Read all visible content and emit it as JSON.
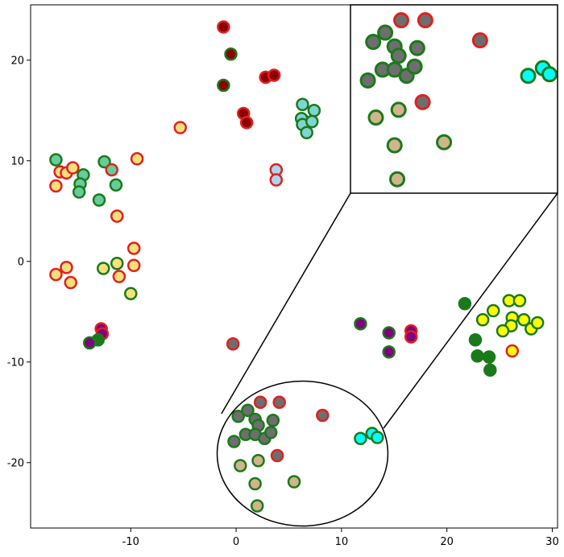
{
  "chart_data": {
    "type": "scatter",
    "title": "",
    "xlabel": "",
    "ylabel": "",
    "xlim": [
      -19.5,
      30.5
    ],
    "ylim": [
      -26.5,
      25.5
    ],
    "xticks": [
      -10,
      0,
      10,
      20,
      30
    ],
    "yticks": [
      -20,
      -10,
      0,
      10,
      20
    ],
    "xtick_labels": [
      "-10",
      "0",
      "10",
      "20",
      "30"
    ],
    "ytick_labels": [
      "-20",
      "-10",
      "0",
      "10",
      "20"
    ],
    "grid": false,
    "legend": "none",
    "zoom_ellipse": {
      "cx": 6.3,
      "cy": -19.1,
      "rx": 8.1,
      "ry": 7.2
    },
    "inset": {
      "source_xlim": [
        -1.5,
        14.0
      ],
      "source_ylim": [
        -25.2,
        -13.0
      ],
      "region_label": "top-right zoom inset"
    },
    "points": [
      {
        "x": -1.2,
        "y": 23.3,
        "fill": "#8b0000",
        "edge": "#e02020"
      },
      {
        "x": -0.5,
        "y": 20.6,
        "fill": "#8b0000",
        "edge": "#1a7a1a"
      },
      {
        "x": -1.2,
        "y": 17.5,
        "fill": "#8b0000",
        "edge": "#1a7a1a"
      },
      {
        "x": 0.7,
        "y": 14.7,
        "fill": "#8b0000",
        "edge": "#e02020"
      },
      {
        "x": 1.0,
        "y": 13.8,
        "fill": "#8b0000",
        "edge": "#e02020"
      },
      {
        "x": 2.8,
        "y": 18.3,
        "fill": "#8b0000",
        "edge": "#e02020"
      },
      {
        "x": 3.6,
        "y": 18.5,
        "fill": "#8b0000",
        "edge": "#e02020"
      },
      {
        "x": -5.3,
        "y": 13.3,
        "fill": "#f7e07a",
        "edge": "#e02020"
      },
      {
        "x": 3.8,
        "y": 9.1,
        "fill": "#a9d6ef",
        "edge": "#e02020"
      },
      {
        "x": 3.8,
        "y": 8.1,
        "fill": "#a9d6ef",
        "edge": "#e02020"
      },
      {
        "x": 6.3,
        "y": 14.1,
        "fill": "#7fd4d4",
        "edge": "#1a7a1a"
      },
      {
        "x": 6.2,
        "y": 14.2,
        "fill": "#7fd4d4",
        "edge": "#1a7a1a"
      },
      {
        "x": 6.3,
        "y": 15.6,
        "fill": "#7fd4d4",
        "edge": "#1a7a1a"
      },
      {
        "x": 7.4,
        "y": 15.0,
        "fill": "#7fd4d4",
        "edge": "#1a7a1a"
      },
      {
        "x": 6.3,
        "y": 13.6,
        "fill": "#7fd4d4",
        "edge": "#1a7a1a"
      },
      {
        "x": 7.2,
        "y": 13.9,
        "fill": "#7fd4d4",
        "edge": "#1a7a1a"
      },
      {
        "x": 6.7,
        "y": 12.8,
        "fill": "#7fd4d4",
        "edge": "#1a7a1a"
      },
      {
        "x": -17.1,
        "y": 10.1,
        "fill": "#66cc99",
        "edge": "#1a7a1a"
      },
      {
        "x": -16.7,
        "y": 8.9,
        "fill": "#f7e07a",
        "edge": "#e02020"
      },
      {
        "x": -16.1,
        "y": 8.8,
        "fill": "#f7e07a",
        "edge": "#e02020"
      },
      {
        "x": -15.5,
        "y": 9.3,
        "fill": "#f7e07a",
        "edge": "#e02020"
      },
      {
        "x": -17.1,
        "y": 7.5,
        "fill": "#f7e07a",
        "edge": "#e02020"
      },
      {
        "x": -14.5,
        "y": 8.6,
        "fill": "#66cc99",
        "edge": "#1a7a1a"
      },
      {
        "x": -14.8,
        "y": 7.7,
        "fill": "#66cc99",
        "edge": "#1a7a1a"
      },
      {
        "x": -14.9,
        "y": 6.9,
        "fill": "#66cc99",
        "edge": "#1a7a1a"
      },
      {
        "x": -12.5,
        "y": 9.9,
        "fill": "#66cc99",
        "edge": "#1a7a1a"
      },
      {
        "x": -11.8,
        "y": 9.1,
        "fill": "#66cc99",
        "edge": "#e02020"
      },
      {
        "x": -11.4,
        "y": 7.6,
        "fill": "#66cc99",
        "edge": "#1a7a1a"
      },
      {
        "x": -13.0,
        "y": 6.1,
        "fill": "#66cc99",
        "edge": "#1a7a1a"
      },
      {
        "x": -9.4,
        "y": 10.2,
        "fill": "#f7e07a",
        "edge": "#e02020"
      },
      {
        "x": -11.3,
        "y": 4.5,
        "fill": "#f7e07a",
        "edge": "#e02020"
      },
      {
        "x": -17.1,
        "y": -1.3,
        "fill": "#f7e07a",
        "edge": "#e02020"
      },
      {
        "x": -16.1,
        "y": -0.6,
        "fill": "#f7e07a",
        "edge": "#e02020"
      },
      {
        "x": -15.7,
        "y": -2.1,
        "fill": "#f7e07a",
        "edge": "#e02020"
      },
      {
        "x": -12.6,
        "y": -0.7,
        "fill": "#f7e07a",
        "edge": "#1a7a1a"
      },
      {
        "x": -11.3,
        "y": -0.2,
        "fill": "#f7e07a",
        "edge": "#1a7a1a"
      },
      {
        "x": -11.1,
        "y": -1.5,
        "fill": "#f7e07a",
        "edge": "#e02020"
      },
      {
        "x": -9.7,
        "y": -0.4,
        "fill": "#f7e07a",
        "edge": "#e02020"
      },
      {
        "x": -9.7,
        "y": 1.3,
        "fill": "#f7e07a",
        "edge": "#e02020"
      },
      {
        "x": -10.0,
        "y": -3.2,
        "fill": "#f7e07a",
        "edge": "#1a7a1a"
      },
      {
        "x": -12.8,
        "y": -6.7,
        "fill": "#800080",
        "edge": "#e02020"
      },
      {
        "x": -12.7,
        "y": -7.2,
        "fill": "#800080",
        "edge": "#e02020"
      },
      {
        "x": -13.1,
        "y": -7.8,
        "fill": "#1a7a1a",
        "edge": "#1a7a1a"
      },
      {
        "x": -13.9,
        "y": -8.1,
        "fill": "#800080",
        "edge": "#1a7a1a"
      },
      {
        "x": -0.3,
        "y": -8.2,
        "fill": "#6e6e6e",
        "edge": "#e02020"
      },
      {
        "x": 11.8,
        "y": -6.2,
        "fill": "#800080",
        "edge": "#1a7a1a"
      },
      {
        "x": 14.5,
        "y": -7.1,
        "fill": "#800080",
        "edge": "#1a7a1a"
      },
      {
        "x": 14.5,
        "y": -9.0,
        "fill": "#800080",
        "edge": "#1a7a1a"
      },
      {
        "x": 16.6,
        "y": -6.9,
        "fill": "#800080",
        "edge": "#e02020"
      },
      {
        "x": 16.6,
        "y": -7.5,
        "fill": "#800080",
        "edge": "#e02020"
      },
      {
        "x": 21.7,
        "y": -4.2,
        "fill": "#1a7a1a",
        "edge": "#1a7a1a"
      },
      {
        "x": 22.7,
        "y": -7.8,
        "fill": "#1a7a1a",
        "edge": "#1a7a1a"
      },
      {
        "x": 22.9,
        "y": -9.4,
        "fill": "#1a7a1a",
        "edge": "#1a7a1a"
      },
      {
        "x": 24.0,
        "y": -9.5,
        "fill": "#1a7a1a",
        "edge": "#1a7a1a"
      },
      {
        "x": 24.1,
        "y": -10.8,
        "fill": "#1a7a1a",
        "edge": "#1a7a1a"
      },
      {
        "x": 23.4,
        "y": -5.8,
        "fill": "#ffff00",
        "edge": "#1a7a1a"
      },
      {
        "x": 24.4,
        "y": -4.9,
        "fill": "#ffff00",
        "edge": "#1a7a1a"
      },
      {
        "x": 25.9,
        "y": -3.9,
        "fill": "#ffff00",
        "edge": "#1a7a1a"
      },
      {
        "x": 26.9,
        "y": -3.9,
        "fill": "#ffff00",
        "edge": "#1a7a1a"
      },
      {
        "x": 26.2,
        "y": -5.6,
        "fill": "#ffff00",
        "edge": "#1a7a1a"
      },
      {
        "x": 26.1,
        "y": -6.4,
        "fill": "#ffff00",
        "edge": "#1a7a1a"
      },
      {
        "x": 25.3,
        "y": -6.9,
        "fill": "#ffff00",
        "edge": "#1a7a1a"
      },
      {
        "x": 27.3,
        "y": -5.8,
        "fill": "#ffff00",
        "edge": "#1a7a1a"
      },
      {
        "x": 28.0,
        "y": -6.7,
        "fill": "#ffff00",
        "edge": "#1a7a1a"
      },
      {
        "x": 28.6,
        "y": -6.1,
        "fill": "#ffff00",
        "edge": "#1a7a1a"
      },
      {
        "x": 26.2,
        "y": -8.9,
        "fill": "#ffff00",
        "edge": "#e02020"
      },
      {
        "x": 0.2,
        "y": -15.4,
        "fill": "#6e6e6e",
        "edge": "#1a7a1a"
      },
      {
        "x": 1.1,
        "y": -14.8,
        "fill": "#6e6e6e",
        "edge": "#1a7a1a"
      },
      {
        "x": 2.3,
        "y": -14.0,
        "fill": "#6e6e6e",
        "edge": "#e02020"
      },
      {
        "x": 1.8,
        "y": -15.7,
        "fill": "#6e6e6e",
        "edge": "#1a7a1a"
      },
      {
        "x": 2.1,
        "y": -16.3,
        "fill": "#6e6e6e",
        "edge": "#1a7a1a"
      },
      {
        "x": 0.9,
        "y": -17.2,
        "fill": "#6e6e6e",
        "edge": "#1a7a1a"
      },
      {
        "x": 1.8,
        "y": -17.2,
        "fill": "#6e6e6e",
        "edge": "#1a7a1a"
      },
      {
        "x": 2.7,
        "y": -17.6,
        "fill": "#6e6e6e",
        "edge": "#1a7a1a"
      },
      {
        "x": 3.3,
        "y": -17.0,
        "fill": "#6e6e6e",
        "edge": "#1a7a1a"
      },
      {
        "x": 3.5,
        "y": -15.8,
        "fill": "#6e6e6e",
        "edge": "#1a7a1a"
      },
      {
        "x": 4.1,
        "y": -14.0,
        "fill": "#6e6e6e",
        "edge": "#e02020"
      },
      {
        "x": -0.2,
        "y": -17.9,
        "fill": "#6e6e6e",
        "edge": "#1a7a1a"
      },
      {
        "x": 8.2,
        "y": -15.3,
        "fill": "#6e6e6e",
        "edge": "#e02020"
      },
      {
        "x": 3.9,
        "y": -19.3,
        "fill": "#6e6e6e",
        "edge": "#e02020"
      },
      {
        "x": 0.4,
        "y": -20.3,
        "fill": "#d2b48c",
        "edge": "#1a7a1a"
      },
      {
        "x": 2.1,
        "y": -19.8,
        "fill": "#d2b48c",
        "edge": "#1a7a1a"
      },
      {
        "x": 1.8,
        "y": -22.1,
        "fill": "#d2b48c",
        "edge": "#1a7a1a"
      },
      {
        "x": 2.0,
        "y": -24.3,
        "fill": "#d2b48c",
        "edge": "#1a7a1a"
      },
      {
        "x": 5.5,
        "y": -21.9,
        "fill": "#d2b48c",
        "edge": "#1a7a1a"
      },
      {
        "x": 11.8,
        "y": -17.6,
        "fill": "#00ffff",
        "edge": "#1a7a1a"
      },
      {
        "x": 12.9,
        "y": -17.1,
        "fill": "#00ffff",
        "edge": "#1a7a1a"
      },
      {
        "x": 13.4,
        "y": -17.5,
        "fill": "#00ffff",
        "edge": "#1a7a1a"
      }
    ],
    "inset_points": [
      {
        "x": 0.2,
        "y": -15.4,
        "fill": "#6e6e6e",
        "edge": "#1a7a1a"
      },
      {
        "x": 1.1,
        "y": -14.8,
        "fill": "#6e6e6e",
        "edge": "#1a7a1a"
      },
      {
        "x": 2.3,
        "y": -14.0,
        "fill": "#6e6e6e",
        "edge": "#e02020"
      },
      {
        "x": 1.8,
        "y": -15.7,
        "fill": "#6e6e6e",
        "edge": "#1a7a1a"
      },
      {
        "x": 2.1,
        "y": -16.3,
        "fill": "#6e6e6e",
        "edge": "#1a7a1a"
      },
      {
        "x": 0.9,
        "y": -17.2,
        "fill": "#6e6e6e",
        "edge": "#1a7a1a"
      },
      {
        "x": 1.8,
        "y": -17.2,
        "fill": "#6e6e6e",
        "edge": "#1a7a1a"
      },
      {
        "x": 2.7,
        "y": -17.6,
        "fill": "#6e6e6e",
        "edge": "#1a7a1a"
      },
      {
        "x": 3.3,
        "y": -17.0,
        "fill": "#6e6e6e",
        "edge": "#1a7a1a"
      },
      {
        "x": 3.5,
        "y": -15.8,
        "fill": "#6e6e6e",
        "edge": "#1a7a1a"
      },
      {
        "x": 4.1,
        "y": -14.0,
        "fill": "#6e6e6e",
        "edge": "#e02020"
      },
      {
        "x": -0.2,
        "y": -17.9,
        "fill": "#6e6e6e",
        "edge": "#1a7a1a"
      },
      {
        "x": 8.2,
        "y": -15.3,
        "fill": "#6e6e6e",
        "edge": "#e02020"
      },
      {
        "x": 3.9,
        "y": -19.3,
        "fill": "#6e6e6e",
        "edge": "#e02020"
      },
      {
        "x": 0.4,
        "y": -20.3,
        "fill": "#d2b48c",
        "edge": "#1a7a1a"
      },
      {
        "x": 2.1,
        "y": -19.8,
        "fill": "#d2b48c",
        "edge": "#1a7a1a"
      },
      {
        "x": 1.8,
        "y": -22.1,
        "fill": "#d2b48c",
        "edge": "#1a7a1a"
      },
      {
        "x": 2.0,
        "y": -24.3,
        "fill": "#d2b48c",
        "edge": "#1a7a1a"
      },
      {
        "x": 5.5,
        "y": -21.9,
        "fill": "#d2b48c",
        "edge": "#1a7a1a"
      },
      {
        "x": 11.8,
        "y": -17.6,
        "fill": "#00ffff",
        "edge": "#1a7a1a"
      },
      {
        "x": 12.9,
        "y": -17.1,
        "fill": "#00ffff",
        "edge": "#1a7a1a"
      },
      {
        "x": 13.4,
        "y": -17.5,
        "fill": "#00ffff",
        "edge": "#1a7a1a"
      }
    ]
  }
}
